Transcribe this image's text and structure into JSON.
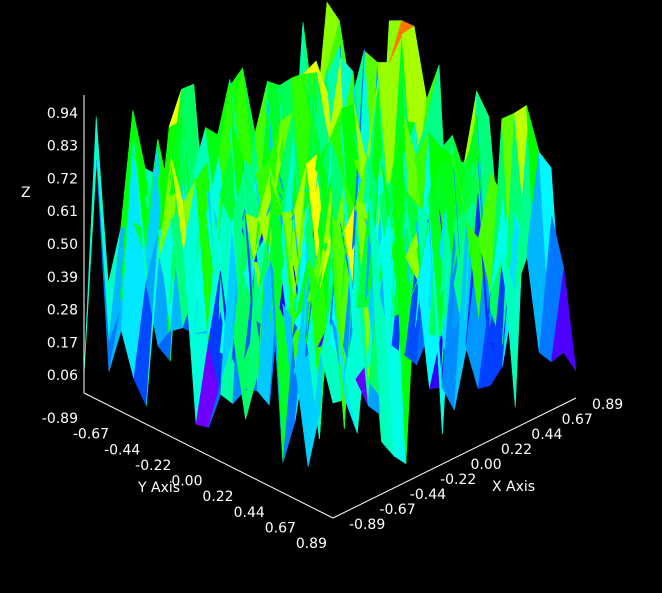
{
  "chart_data": {
    "type": "surface3d",
    "title": "",
    "xlabel": "X Axis",
    "ylabel": "Y Axis",
    "zlabel": "Z",
    "x_ticks": [
      "-0.89",
      "-0.67",
      "-0.44",
      "-0.22",
      "0.00",
      "0.22",
      "0.44",
      "0.67",
      "0.89"
    ],
    "y_ticks": [
      "-0.89",
      "-0.67",
      "-0.44",
      "-0.22",
      "0.00",
      "0.22",
      "0.44",
      "0.67",
      "0.89"
    ],
    "z_ticks": [
      "0.94",
      "0.83",
      "0.72",
      "0.61",
      "0.50",
      "0.39",
      "0.28",
      "0.17",
      "0.06"
    ],
    "xlim": [
      -0.89,
      0.89
    ],
    "ylim": [
      -0.89,
      0.89
    ],
    "zlim": [
      0.0,
      1.0
    ],
    "colormap": "hsv",
    "colors": {
      "background": "#000000",
      "axis": "#ffffff",
      "low": "#ff00aa",
      "mid": "#00ffff",
      "high": "#ff3300"
    },
    "grid_size": 20,
    "random_seed": 7
  }
}
